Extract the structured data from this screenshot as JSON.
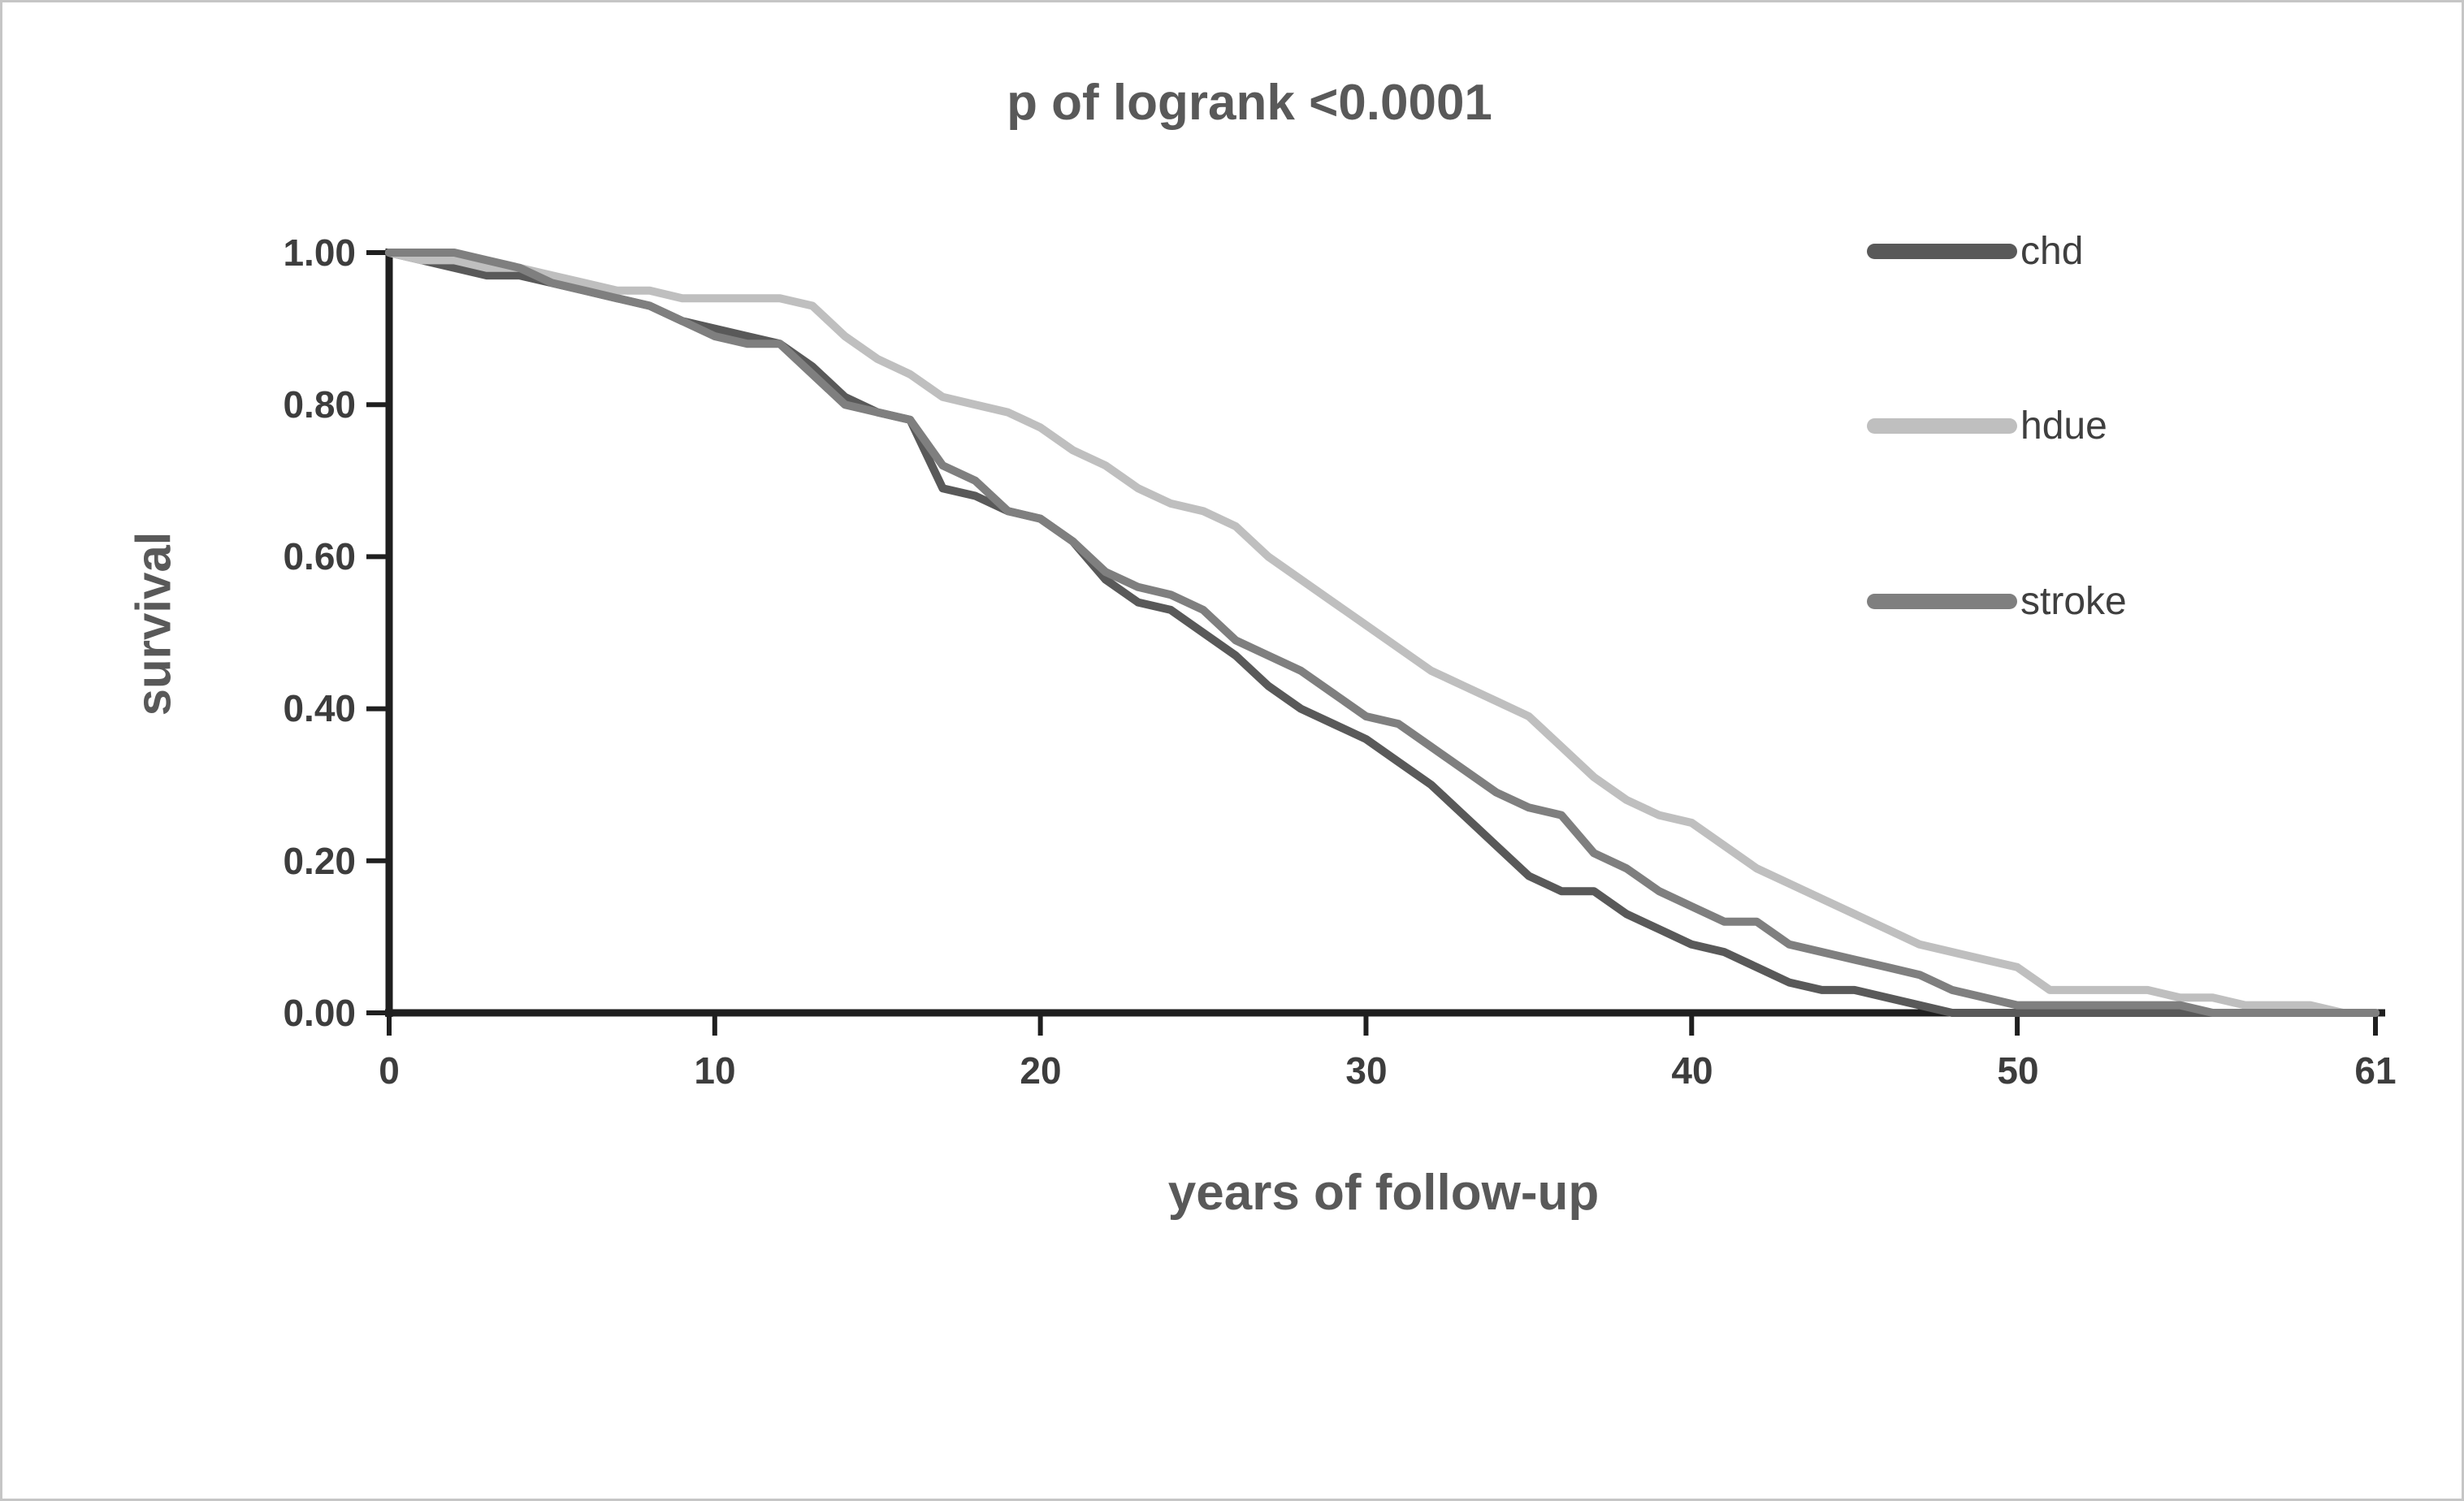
{
  "chart_data": {
    "type": "line",
    "title": "p of logrank <0.0001",
    "xlabel": "years of follow-up",
    "ylabel": "survival",
    "xlim": [
      0,
      61
    ],
    "ylim": [
      0,
      1
    ],
    "grid": false,
    "legend_position": "right-top",
    "x_ticks": [
      "0",
      "10",
      "20",
      "30",
      "40",
      "50",
      "61"
    ],
    "y_ticks": [
      "1.00",
      "0.80",
      "0.60",
      "0.40",
      "0.20",
      "0.00"
    ],
    "x": [
      0,
      1,
      2,
      3,
      4,
      5,
      6,
      7,
      8,
      9,
      10,
      11,
      12,
      13,
      14,
      15,
      16,
      17,
      18,
      19,
      20,
      21,
      22,
      23,
      24,
      25,
      26,
      27,
      28,
      29,
      30,
      31,
      32,
      33,
      34,
      35,
      36,
      37,
      38,
      39,
      40,
      41,
      42,
      43,
      44,
      45,
      46,
      47,
      48,
      49,
      50,
      51,
      52,
      53,
      54,
      55,
      56,
      57,
      58,
      59,
      60,
      61
    ],
    "series": [
      {
        "name": "chd",
        "color": "#595959",
        "values": [
          1.0,
          0.99,
          0.98,
          0.97,
          0.97,
          0.96,
          0.95,
          0.94,
          0.93,
          0.91,
          0.9,
          0.89,
          0.88,
          0.85,
          0.81,
          0.79,
          0.78,
          0.69,
          0.68,
          0.66,
          0.65,
          0.62,
          0.57,
          0.54,
          0.53,
          0.5,
          0.47,
          0.43,
          0.4,
          0.38,
          0.36,
          0.33,
          0.3,
          0.26,
          0.22,
          0.18,
          0.16,
          0.16,
          0.13,
          0.11,
          0.09,
          0.08,
          0.06,
          0.04,
          0.03,
          0.03,
          0.02,
          0.01,
          0.0,
          0.0,
          0.0,
          0.0,
          0.0,
          0.0,
          0.0,
          0.0,
          0.0,
          0.0,
          0.0,
          0.0,
          0.0,
          0.0
        ]
      },
      {
        "name": "hdue",
        "color": "#bfbfbf",
        "values": [
          1.0,
          0.99,
          0.99,
          0.98,
          0.98,
          0.97,
          0.96,
          0.95,
          0.95,
          0.94,
          0.94,
          0.94,
          0.94,
          0.93,
          0.89,
          0.86,
          0.84,
          0.81,
          0.8,
          0.79,
          0.77,
          0.74,
          0.72,
          0.69,
          0.67,
          0.66,
          0.64,
          0.6,
          0.57,
          0.54,
          0.51,
          0.48,
          0.45,
          0.43,
          0.41,
          0.39,
          0.35,
          0.31,
          0.28,
          0.26,
          0.25,
          0.22,
          0.19,
          0.17,
          0.15,
          0.13,
          0.11,
          0.09,
          0.08,
          0.07,
          0.06,
          0.03,
          0.03,
          0.03,
          0.03,
          0.02,
          0.02,
          0.01,
          0.01,
          0.01,
          0.0,
          0.0
        ]
      },
      {
        "name": "stroke",
        "color": "#7f7f7f",
        "values": [
          1.0,
          1.0,
          1.0,
          0.99,
          0.98,
          0.96,
          0.95,
          0.94,
          0.93,
          0.91,
          0.89,
          0.88,
          0.88,
          0.84,
          0.8,
          0.79,
          0.78,
          0.72,
          0.7,
          0.66,
          0.65,
          0.62,
          0.58,
          0.56,
          0.55,
          0.53,
          0.49,
          0.47,
          0.45,
          0.42,
          0.39,
          0.38,
          0.35,
          0.32,
          0.29,
          0.27,
          0.26,
          0.21,
          0.19,
          0.16,
          0.14,
          0.12,
          0.12,
          0.09,
          0.08,
          0.07,
          0.06,
          0.05,
          0.03,
          0.02,
          0.01,
          0.01,
          0.01,
          0.01,
          0.01,
          0.01,
          0.0,
          0.0,
          0.0,
          0.0,
          0.0,
          0.0
        ]
      }
    ]
  }
}
